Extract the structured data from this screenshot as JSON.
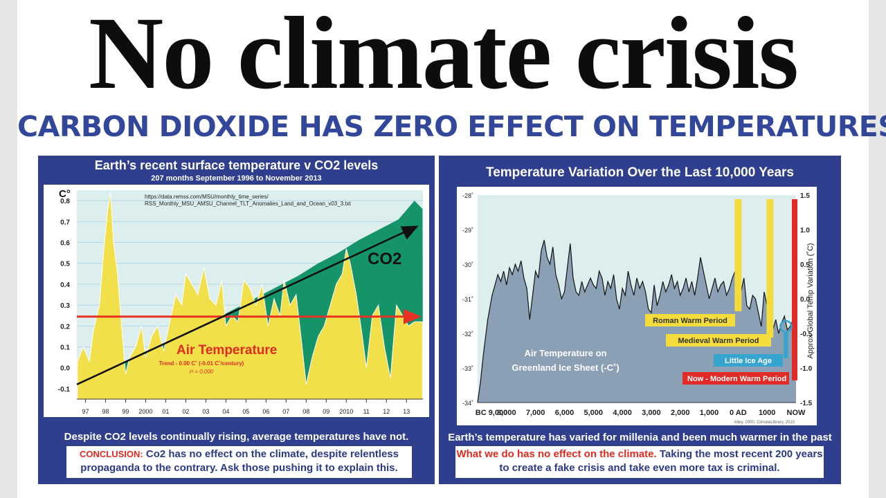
{
  "headline": "No climate crisis",
  "subheadline": "CARBON DIOXIDE HAS ZERO EFFECT ON TEMPERATURES",
  "left_panel": {
    "title": "Earth’s recent surface temperature v CO2 levels",
    "subtitle": "207 months September 1996 to November 2013",
    "source_line1": "https://data.remss.com/MSU/monthly_time_series/",
    "source_line2": "RSS_Monthly_MSU_AMSU_Channel_TLT_Anomalies_Land_and_Ocean_v03_3.txt",
    "co2_label": "CO2",
    "air_label": "Air Temperature",
    "trend_text": "Trend - 0.00 C˚ (-0.01 C˚/century)",
    "r2_text": "r² = 0.000",
    "caption": "Despite CO2 levels continually rising, average temperatures have not.",
    "conclusion_label": "CONCLUSION:",
    "conclusion_text": "Co2 has no effect on the climate, despite relentless propaganda to the contrary. Ask those pushing it to explain this.",
    "colors": {
      "co2": "#15946a",
      "temp": "#f2e04a",
      "plot_bg": "#dcefee",
      "arrow_red": "#e53022"
    }
  },
  "right_panel": {
    "title": "Temperature Variation Over the Last 10,000 Years",
    "air_label_line1": "Air Temperature on",
    "air_label_line2": "Greenland Ice Sheet (-C˚)",
    "period_roman": "Roman Warm Period",
    "period_medieval": "Medieval Warm Period",
    "period_little": "Little Ice Age",
    "period_now_strong": "Now",
    "period_now_rest": " - Modern Warm Period",
    "credit": "Alley, 2000; ClimateLibrary, 2010",
    "right_axis_label": "Approx Global Temp Variation (˚C)",
    "caption": "Earth’s temperature has varied for millenia and been much warmer in the past",
    "conclusion_red": "What we do has no effect on the climate.",
    "conclusion_rest": " Taking the most recent 200 years to create a fake crisis and take even more tax is criminal.",
    "colors": {
      "area": "#8b9fb5",
      "plot_bg": "#dcefee",
      "yellow": "#f3dc3c",
      "blue": "#35a5cf",
      "red": "#e22b26"
    }
  },
  "chart_data": [
    {
      "type": "area",
      "title": "Earth’s recent surface temperature v CO2 levels",
      "subtitle": "207 months September 1996 to November 2013",
      "xlabel": "",
      "ylabel": "C°",
      "x_ticks": [
        "97",
        "98",
        "99",
        "2000",
        "01",
        "02",
        "03",
        "04",
        "05",
        "06",
        "07",
        "08",
        "09",
        "2010",
        "11",
        "12",
        "13"
      ],
      "ylim": [
        -0.15,
        0.85
      ],
      "y_ticks": [
        -0.1,
        0.0,
        0.1,
        0.2,
        0.3,
        0.4,
        0.5,
        0.6,
        0.7,
        0.8
      ],
      "y_tick_labels": [
        "-0.1",
        "0.0",
        "0.1",
        "0.2",
        "0.3",
        "0.4",
        "0.5",
        "0.6",
        "0.7",
        "0.8"
      ],
      "xlim": [
        1996.67,
        2013.92
      ],
      "grid": true,
      "series": [
        {
          "name": "Air Temperature",
          "x": [
            1996.7,
            1997.0,
            1997.3,
            1997.5,
            1997.8,
            1998.0,
            1998.2,
            1998.35,
            1998.5,
            1998.7,
            1998.9,
            1999.1,
            1999.3,
            1999.6,
            1999.9,
            2000.1,
            2000.4,
            2000.7,
            2001.0,
            2001.3,
            2001.6,
            2001.9,
            2002.1,
            2002.4,
            2002.7,
            2003.0,
            2003.3,
            2003.6,
            2003.9,
            2004.1,
            2004.4,
            2004.7,
            2005.0,
            2005.3,
            2005.6,
            2005.9,
            2006.2,
            2006.5,
            2006.8,
            2007.0,
            2007.3,
            2007.6,
            2007.9,
            2008.1,
            2008.4,
            2008.7,
            2009.0,
            2009.3,
            2009.6,
            2009.9,
            2010.1,
            2010.3,
            2010.6,
            2010.9,
            2011.1,
            2011.4,
            2011.7,
            2012.0,
            2012.3,
            2012.6,
            2012.9,
            2013.2,
            2013.5,
            2013.9
          ],
          "values": [
            0.03,
            0.1,
            0.03,
            0.18,
            0.3,
            0.55,
            0.75,
            0.84,
            0.6,
            0.45,
            0.2,
            -0.03,
            0.05,
            0.1,
            0.2,
            0.05,
            0.15,
            0.2,
            0.08,
            0.22,
            0.35,
            0.3,
            0.45,
            0.4,
            0.35,
            0.48,
            0.33,
            0.3,
            0.42,
            0.2,
            0.25,
            0.22,
            0.42,
            0.38,
            0.3,
            0.4,
            0.2,
            0.33,
            0.25,
            0.42,
            0.3,
            0.35,
            0.1,
            -0.08,
            0.05,
            0.15,
            0.2,
            0.3,
            0.4,
            0.45,
            0.57,
            0.5,
            0.35,
            0.15,
            0.0,
            0.25,
            0.3,
            0.1,
            -0.05,
            0.3,
            0.25,
            0.2,
            0.22,
            0.22
          ]
        },
        {
          "name": "CO2",
          "x": [
            1996.7,
            1997.7,
            1998.7,
            1999.7,
            2000.7,
            2001.7,
            2002.7,
            2003.7,
            2004.7,
            2005.7,
            2006.7,
            2007.7,
            2008.7,
            2009.7,
            2010.7,
            2011.7,
            2012.7,
            2013.5,
            2013.9
          ],
          "values": [
            -0.08,
            -0.04,
            0.01,
            0.05,
            0.1,
            0.14,
            0.19,
            0.24,
            0.29,
            0.34,
            0.39,
            0.44,
            0.5,
            0.55,
            0.61,
            0.66,
            0.71,
            0.8,
            0.76
          ]
        },
        {
          "name": "Trend (linear)",
          "x": [
            1996.67,
            2013.92
          ],
          "values": [
            0.245,
            0.245
          ]
        }
      ]
    },
    {
      "type": "line",
      "title": "Temperature Variation Over the Last 10,000 Years",
      "xlabel": "",
      "ylabel": "Air Temperature on Greenland Ice Sheet (-C˚)",
      "x_ticks": [
        "BC 9,000",
        "8,000",
        "7,000",
        "6,000",
        "5,000",
        "4,000",
        "3,000",
        "2,000",
        "1,000",
        "0 AD",
        "1000",
        "NOW"
      ],
      "x_tick_years": [
        -9000,
        -8000,
        -7000,
        -6000,
        -5000,
        -4000,
        -3000,
        -2000,
        -1000,
        0,
        1000,
        2000
      ],
      "xlim": [
        -9000,
        2000
      ],
      "y_left_ticks": [
        -28,
        -29,
        -30,
        -31,
        -32,
        -33,
        -34
      ],
      "y_left_tick_labels": [
        "-28˚",
        "-29˚",
        "-30˚",
        "-31˚",
        "-32˚",
        "-33˚",
        "-34˚"
      ],
      "ylim": [
        -34,
        -28
      ],
      "y_right_ticks": [
        1.5,
        1.0,
        0.5,
        0.0,
        -0.5,
        -1.0,
        -1.5
      ],
      "y_right_tick_labels": [
        "1.5",
        "1.0",
        "0.5",
        "0.0",
        "-0.5",
        "-1.0",
        "-1.5"
      ],
      "y_right_label": "Approx Global Temp Variation (˚C)",
      "series": [
        {
          "name": "Greenland Ice Sheet",
          "x": [
            -9000,
            -8900,
            -8800,
            -8650,
            -8500,
            -8400,
            -8300,
            -8200,
            -8100,
            -8000,
            -7900,
            -7800,
            -7700,
            -7600,
            -7500,
            -7400,
            -7300,
            -7200,
            -7100,
            -7000,
            -6900,
            -6800,
            -6700,
            -6600,
            -6500,
            -6400,
            -6300,
            -6200,
            -6100,
            -6000,
            -5900,
            -5800,
            -5700,
            -5600,
            -5500,
            -5400,
            -5300,
            -5200,
            -5100,
            -5000,
            -4900,
            -4800,
            -4700,
            -4600,
            -4500,
            -4400,
            -4300,
            -4200,
            -4100,
            -4000,
            -3900,
            -3800,
            -3700,
            -3600,
            -3500,
            -3400,
            -3300,
            -3200,
            -3100,
            -3000,
            -2900,
            -2800,
            -2700,
            -2600,
            -2500,
            -2400,
            -2300,
            -2200,
            -2100,
            -2000,
            -1900,
            -1800,
            -1700,
            -1600,
            -1500,
            -1400,
            -1300,
            -1200,
            -1100,
            -1000,
            -900,
            -800,
            -700,
            -600,
            -500,
            -400,
            -300,
            -200,
            -100,
            0,
            100,
            200,
            300,
            400,
            500,
            600,
            700,
            800,
            900,
            1000,
            1100,
            1200,
            1300,
            1400,
            1500,
            1600,
            1700,
            1800,
            1900,
            2000
          ],
          "values": [
            -34.0,
            -33.4,
            -32.6,
            -31.6,
            -30.9,
            -30.6,
            -30.3,
            -30.5,
            -30.2,
            -30.6,
            -30.1,
            -30.3,
            -30.0,
            -30.2,
            -29.9,
            -30.4,
            -30.7,
            -31.6,
            -30.9,
            -30.2,
            -30.4,
            -29.6,
            -29.3,
            -29.8,
            -30.0,
            -29.5,
            -30.3,
            -30.6,
            -31.0,
            -30.8,
            -30.1,
            -29.4,
            -30.4,
            -30.8,
            -30.9,
            -30.5,
            -30.8,
            -30.6,
            -30.4,
            -30.6,
            -30.7,
            -30.2,
            -30.4,
            -30.9,
            -30.5,
            -30.7,
            -30.3,
            -31.0,
            -31.3,
            -30.7,
            -30.9,
            -30.2,
            -30.6,
            -30.9,
            -30.4,
            -30.7,
            -30.5,
            -30.8,
            -31.3,
            -31.4,
            -30.6,
            -31.2,
            -30.9,
            -30.5,
            -30.8,
            -30.6,
            -30.3,
            -30.7,
            -30.5,
            -30.9,
            -30.7,
            -30.4,
            -30.8,
            -30.5,
            -30.9,
            -30.4,
            -29.8,
            -30.2,
            -30.6,
            -31.0,
            -30.7,
            -30.4,
            -30.8,
            -30.6,
            -30.5,
            -30.9,
            -30.7,
            -30.4,
            -30.2,
            -31.0,
            -30.8,
            -30.4,
            -31.2,
            -31.3,
            -30.9,
            -31.0,
            -31.4,
            -31.8,
            -30.8,
            -31.2,
            -31.7,
            -31.9,
            -31.6,
            -32.0,
            -31.7,
            -31.5,
            -31.9,
            -31.8,
            -31.6,
            -31.6
          ]
        }
      ],
      "periods": [
        {
          "name": "Roman Warm Period",
          "year": 0
        },
        {
          "name": "Medieval Warm Period",
          "year": 1100
        },
        {
          "name": "Little Ice Age",
          "year": 1650
        },
        {
          "name": "Now - Modern Warm Period",
          "year": 2000
        }
      ],
      "credit": "Alley, 2000; ClimateLibrary, 2010"
    }
  ]
}
